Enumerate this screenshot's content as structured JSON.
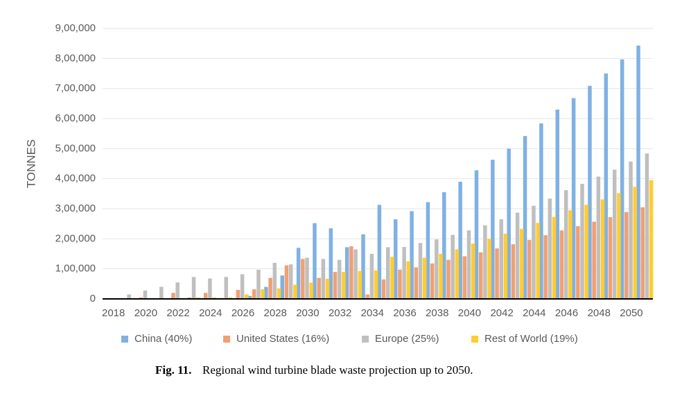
{
  "chart_data": {
    "type": "bar",
    "y_label": "TONNES",
    "caption": {
      "label": "Fig. 11.",
      "text": "Regional wind turbine blade waste projection up to 2050."
    },
    "categories": [
      "2018",
      null,
      "2020",
      null,
      "2022",
      null,
      "2024",
      null,
      "2026",
      null,
      "2028",
      null,
      "2030",
      null,
      "2032",
      null,
      "2034",
      null,
      "2036",
      null,
      "2038",
      null,
      "2040",
      null,
      "2042",
      null,
      "2044",
      null,
      "2046",
      null,
      "2048",
      null,
      "2050",
      null
    ],
    "series": [
      {
        "name": "China (40%)",
        "color": "#7fb1e3",
        "values": [
          0,
          0,
          0,
          0,
          0,
          0,
          0,
          0,
          0,
          10000,
          40000,
          78000,
          170000,
          252000,
          235000,
          172000,
          215000,
          313000,
          265000,
          292000,
          322000,
          355000,
          390000,
          428000,
          463000,
          500000,
          542000,
          584000,
          630000,
          668000,
          709000,
          750000,
          797000,
          843000
        ]
      },
      {
        "name": "United States (16%)",
        "color": "#f0a073",
        "values": [
          0,
          0,
          5000,
          0,
          20000,
          5000,
          20000,
          3000,
          30000,
          32000,
          70000,
          112000,
          133000,
          70000,
          90000,
          175000,
          15000,
          65000,
          97000,
          105000,
          118000,
          130000,
          142000,
          155000,
          168000,
          182000,
          196000,
          212000,
          228000,
          242000,
          257000,
          272000,
          289000,
          305000
        ]
      },
      {
        "name": "Europe (25%)",
        "color": "#bfbfbf",
        "values": [
          0,
          15000,
          28000,
          40000,
          55000,
          73000,
          68000,
          73000,
          82000,
          97000,
          120000,
          115000,
          137000,
          133000,
          130000,
          165000,
          150000,
          172000,
          173000,
          186000,
          198000,
          213000,
          228000,
          245000,
          265000,
          287000,
          310000,
          334000,
          362000,
          383000,
          407000,
          430000,
          457000,
          484000
        ]
      },
      {
        "name": "Rest of World (19%)",
        "color": "#ffcc33",
        "values": [
          0,
          0,
          0,
          0,
          0,
          5000,
          5000,
          5000,
          15000,
          32000,
          35000,
          47000,
          54000,
          67000,
          90000,
          93000,
          95000,
          140000,
          125000,
          137000,
          150000,
          165000,
          184000,
          200000,
          217000,
          233000,
          253000,
          273000,
          295000,
          313000,
          331000,
          352000,
          373000,
          395000
        ]
      }
    ],
    "ylim": [
      0,
      900000
    ],
    "yticks": [
      0,
      {
        "value": 100000,
        "label": "1,00,000"
      },
      {
        "value": 200000,
        "label": "2,00,000"
      },
      {
        "value": 300000,
        "label": "3,00,000"
      },
      {
        "value": 400000,
        "label": "4,00,000"
      },
      {
        "value": 500000,
        "label": "5,00,000"
      },
      {
        "value": 600000,
        "label": "6,00,000"
      },
      {
        "value": 700000,
        "label": "7,00,000"
      },
      {
        "value": 800000,
        "label": "8,00,000"
      },
      {
        "value": 900000,
        "label": "9,00,000"
      }
    ],
    "grid": true,
    "legend": "bottom"
  }
}
